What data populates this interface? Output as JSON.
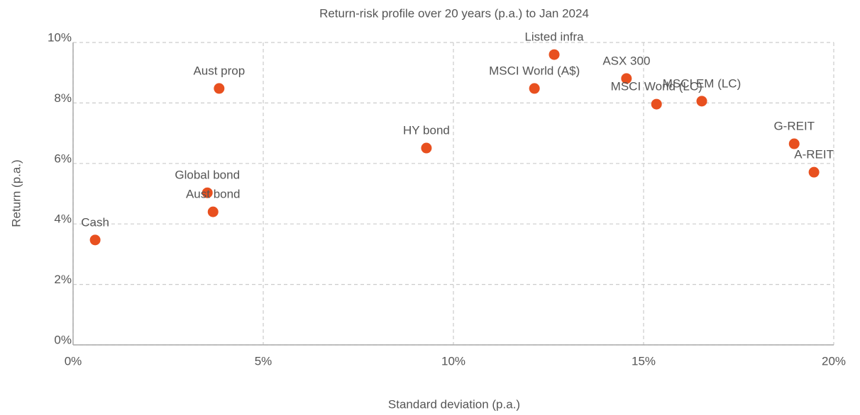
{
  "chart_data": {
    "type": "scatter",
    "title": "Return-risk profile over 20 years (p.a.) to Jan 2024",
    "x_label": "Standard deviation (p.a.)",
    "y_label": "Return (p.a.)",
    "labels": [
      "Cash",
      "Global bond",
      "Aust bond",
      "Aust prop",
      "HY bond",
      "MSCI World (A$)",
      "Listed infra",
      "ASX 300",
      "MSCI World (LC)",
      "MSCI EM (LC)",
      "G-REIT",
      "A-REIT"
    ],
    "x": [
      0.58,
      3.53,
      3.68,
      3.84,
      9.29,
      12.13,
      12.65,
      14.55,
      15.34,
      16.53,
      18.96,
      19.48
    ],
    "values": [
      3.47,
      5.03,
      4.4,
      8.48,
      6.51,
      8.48,
      9.6,
      8.81,
      7.96,
      8.06,
      6.65,
      5.71
    ],
    "color": "#e8501f",
    "xlim": [
      0,
      20
    ],
    "xticks": [
      {
        "value": 0,
        "label": "0%"
      },
      {
        "value": 5,
        "label": "5%"
      },
      {
        "value": 10,
        "label": "10%"
      },
      {
        "value": 15,
        "label": "15%"
      },
      {
        "value": 20,
        "label": "20%"
      }
    ],
    "ylim": [
      0,
      10
    ],
    "yticks": [
      {
        "value": 0,
        "label": "0%"
      },
      {
        "value": 2,
        "label": "2%"
      },
      {
        "value": 4,
        "label": "4%"
      },
      {
        "value": 6,
        "label": "6%"
      },
      {
        "value": 8,
        "label": "8%"
      },
      {
        "value": 10,
        "label": "10%"
      }
    ],
    "grid": true
  }
}
